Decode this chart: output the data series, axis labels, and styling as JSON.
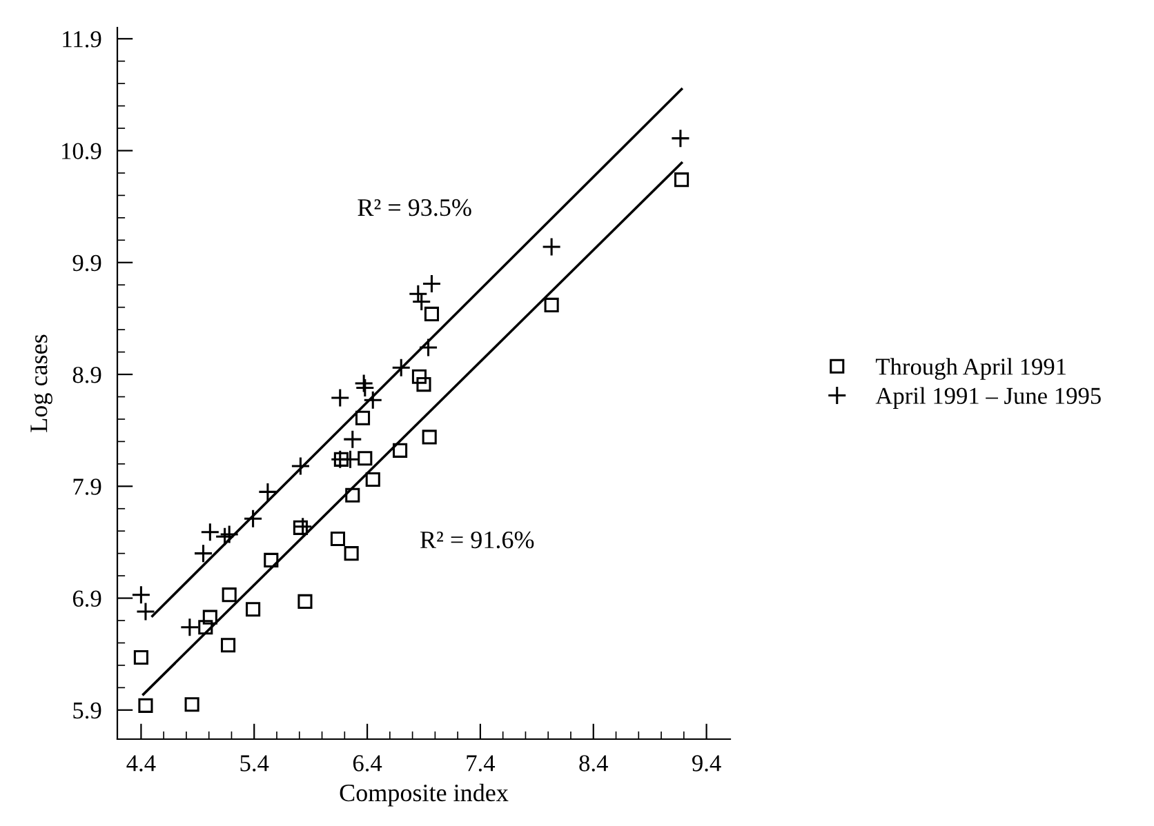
{
  "chart_data": {
    "type": "scatter",
    "xlabel": "Composite index",
    "ylabel": "Log cases",
    "xlim": [
      4.19,
      9.61
    ],
    "ylim": [
      5.64,
      12.0
    ],
    "xticks": [
      4.4,
      {
        "value": 4.6,
        "label": null
      },
      {
        "value": 4.8,
        "label": null
      },
      {
        "value": 5.0,
        "label": null
      },
      {
        "value": 5.2,
        "label": null
      },
      5.4,
      {
        "value": 5.6,
        "label": null
      },
      {
        "value": 5.8,
        "label": null
      },
      {
        "value": 6.0,
        "label": null
      },
      {
        "value": 6.2,
        "label": null
      },
      6.4,
      {
        "value": 6.6,
        "label": null
      },
      {
        "value": 6.8,
        "label": null
      },
      {
        "value": 7.0,
        "label": null
      },
      {
        "value": 7.2,
        "label": null
      },
      7.4,
      {
        "value": 7.6,
        "label": null
      },
      {
        "value": 7.8,
        "label": null
      },
      {
        "value": 8.0,
        "label": null
      },
      {
        "value": 8.2,
        "label": null
      },
      8.4,
      {
        "value": 8.6,
        "label": null
      },
      {
        "value": 8.8,
        "label": null
      },
      {
        "value": 9.0,
        "label": null
      },
      {
        "value": 9.2,
        "label": null
      },
      9.4
    ],
    "yticks": [
      5.9,
      {
        "value": 6.1,
        "label": null
      },
      {
        "value": 6.3,
        "label": null
      },
      {
        "value": 6.5,
        "label": null
      },
      {
        "value": 6.7,
        "label": null
      },
      6.9,
      {
        "value": 7.1,
        "label": null
      },
      {
        "value": 7.3,
        "label": null
      },
      {
        "value": 7.5,
        "label": null
      },
      {
        "value": 7.7,
        "label": null
      },
      7.9,
      {
        "value": 8.1,
        "label": null
      },
      {
        "value": 8.3,
        "label": null
      },
      {
        "value": 8.5,
        "label": null
      },
      {
        "value": 8.7,
        "label": null
      },
      8.9,
      {
        "value": 9.1,
        "label": null
      },
      {
        "value": 9.3,
        "label": null
      },
      {
        "value": 9.5,
        "label": null
      },
      {
        "value": 9.7,
        "label": null
      },
      9.9,
      {
        "value": 10.1,
        "label": null
      },
      {
        "value": 10.3,
        "label": null
      },
      {
        "value": 10.5,
        "label": null
      },
      {
        "value": 10.7,
        "label": null
      },
      10.9,
      {
        "value": 11.1,
        "label": null
      },
      {
        "value": 11.3,
        "label": null
      },
      {
        "value": 11.5,
        "label": null
      },
      {
        "value": 11.7,
        "label": null
      },
      11.9
    ],
    "grid": false,
    "legend": "right",
    "annotations": [
      "R² = 93.5%",
      "R² = 91.6%"
    ],
    "series": [
      {
        "name": "Through April 1991",
        "marker": "square",
        "color": "#000000",
        "x": [
          4.4,
          4.44,
          4.85,
          4.97,
          5.01,
          5.18,
          5.17,
          5.39,
          5.55,
          5.81,
          5.85,
          6.14,
          6.26,
          6.27,
          6.17,
          6.38,
          6.45,
          6.69,
          6.95,
          6.36,
          6.86,
          6.9,
          6.97,
          8.03,
          9.18
        ],
        "values": [
          6.37,
          5.94,
          5.95,
          6.64,
          6.73,
          6.93,
          6.48,
          6.8,
          7.24,
          7.53,
          6.87,
          7.43,
          7.3,
          7.82,
          8.14,
          8.15,
          7.96,
          8.22,
          8.34,
          8.51,
          8.88,
          8.81,
          9.44,
          9.52,
          10.64
        ]
      },
      {
        "name": "April 1991 – June 1995",
        "marker": "cross",
        "color": "#000000",
        "x": [
          4.4,
          4.44,
          4.83,
          4.95,
          5.01,
          5.14,
          5.18,
          5.39,
          5.52,
          5.81,
          5.83,
          6.16,
          6.25,
          6.27,
          6.16,
          6.37,
          6.38,
          6.45,
          6.7,
          6.94,
          6.85,
          6.88,
          6.97,
          8.03,
          9.17
        ],
        "values": [
          6.93,
          6.78,
          6.64,
          7.3,
          7.49,
          7.45,
          7.47,
          7.61,
          7.85,
          8.08,
          7.54,
          8.14,
          8.14,
          8.32,
          8.69,
          8.82,
          8.78,
          8.67,
          8.96,
          9.14,
          9.62,
          9.55,
          9.71,
          10.04,
          11.01
        ]
      },
      {
        "type": "line",
        "marker": "none",
        "line_style": "solid",
        "color": "#000000",
        "x": [
          4.5,
          9.18
        ],
        "values": [
          6.74,
          11.45
        ]
      },
      {
        "type": "line",
        "marker": "none",
        "line_style": "solid",
        "color": "#000000",
        "x": [
          4.42,
          9.18
        ],
        "values": [
          6.04,
          10.79
        ]
      }
    ]
  }
}
